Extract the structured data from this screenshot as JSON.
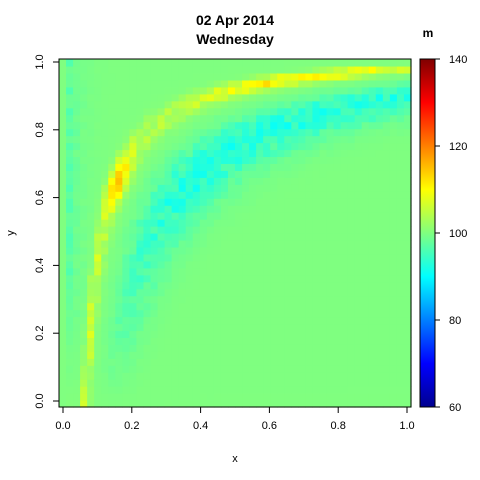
{
  "chart_data": {
    "type": "heatmap",
    "title_line1": "02 Apr 2014",
    "title_line2": "Wednesday",
    "xlabel": "x",
    "ylabel": "y",
    "xlim": [
      0,
      1
    ],
    "ylim": [
      0,
      1
    ],
    "x_ticks": [
      0.0,
      0.2,
      0.4,
      0.6,
      0.8,
      1.0
    ],
    "x_tick_labels": [
      "0.0",
      "0.2",
      "0.4",
      "0.6",
      "0.8",
      "1.0"
    ],
    "y_ticks": [
      0.0,
      0.2,
      0.4,
      0.6,
      0.8,
      1.0
    ],
    "y_tick_labels": [
      "0.0",
      "0.2",
      "0.4",
      "0.6",
      "0.8",
      "1.0"
    ],
    "colorbar": {
      "label": "m",
      "range": [
        60,
        140
      ],
      "ticks": [
        60,
        80,
        100,
        120,
        140
      ],
      "tick_labels": [
        "60",
        "80",
        "100",
        "120",
        "140"
      ],
      "colormap": [
        "#00008f",
        "#0000ff",
        "#00ffff",
        "#ffff00",
        "#ff0000",
        "#800000"
      ]
    },
    "grid_resolution": [
      50,
      50
    ],
    "base_value": 100,
    "features": [
      {
        "name": "ridge",
        "description": "elevated band following curve (x - 0.02)*(1.03 - y) = 0.055",
        "peak_value": 122,
        "peak_at": [
          0.18,
          0.64
        ]
      },
      {
        "name": "trough",
        "description": "depressed band outside the ridge toward upper right",
        "min_value": 93
      },
      {
        "name": "left-strip",
        "description": "low values close to x = 0",
        "min_value": 93
      }
    ]
  }
}
